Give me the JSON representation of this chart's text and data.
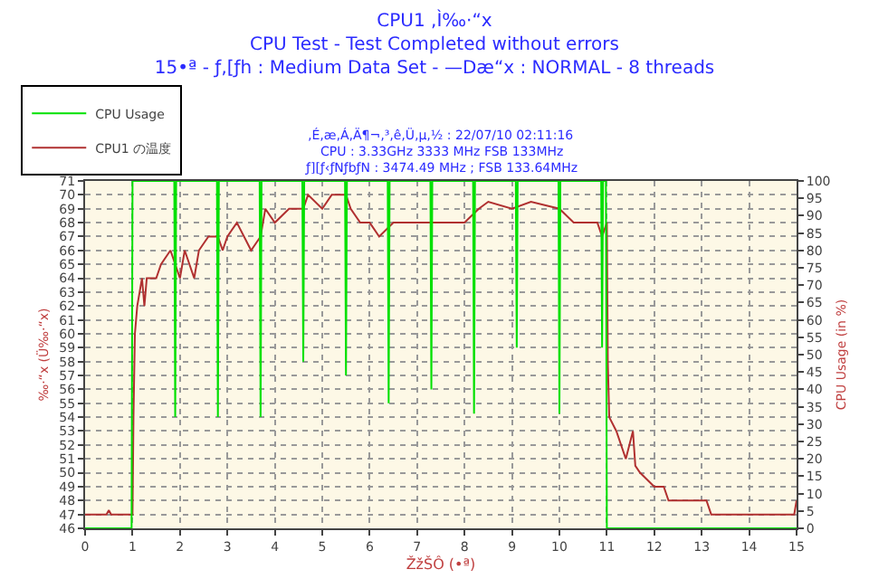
{
  "chart_data": {
    "type": "line",
    "title": "CPU1 ,Ì‰·“x\nCPU Test - Test Completed without errors\n15•ª - ƒ‚[ƒh : Medium Data Set - —Dæ“x : NORMAL - 8 threads",
    "annotations": [
      "‚É‚æ‚Á‚Ä¶¬‚³‚ê‚Ü‚µ‚½ : 22/07/10 02:11:16",
      "CPU : 3.33GHz 3333 MHz FSB 133MHz",
      "ƒ][ƒ‹ƒNƒbƒN : 3474.49 MHz ; FSB 133.64MHz"
    ],
    "xlabel": "ŽžŠÔ (•ª)",
    "ylabel": "‰·“x (Ü‰·“x)",
    "y2label": "CPU Usage (in %)",
    "xlim": [
      0,
      15
    ],
    "xticks": [
      0,
      1,
      2,
      3,
      4,
      5,
      6,
      7,
      8,
      9,
      10,
      11,
      12,
      13,
      14,
      15
    ],
    "ylim": [
      46,
      71
    ],
    "yticks": [
      46,
      47,
      48,
      49,
      50,
      51,
      52,
      53,
      54,
      55,
      56,
      57,
      58,
      59,
      60,
      61,
      62,
      63,
      64,
      65,
      66,
      67,
      68,
      69,
      70,
      71
    ],
    "y2lim": [
      0,
      100
    ],
    "y2ticks": [
      0,
      5,
      10,
      15,
      20,
      25,
      30,
      35,
      40,
      45,
      50,
      55,
      60,
      65,
      70,
      75,
      80,
      85,
      90,
      95,
      100
    ],
    "grid": true,
    "legend": "top left",
    "marker": "none",
    "line_style": "solid",
    "series": [
      {
        "name": "CPU Usage",
        "color": "#00e000",
        "axis": "y2",
        "x": [
          0,
          0.98,
          1.0,
          1.88,
          1.9,
          1.92,
          2.78,
          2.8,
          2.82,
          3.68,
          3.7,
          3.72,
          4.58,
          4.6,
          4.62,
          5.48,
          5.5,
          5.52,
          6.38,
          6.4,
          6.42,
          7.28,
          7.3,
          7.32,
          8.18,
          8.2,
          8.22,
          9.08,
          9.1,
          9.12,
          9.98,
          10.0,
          10.02,
          10.88,
          10.9,
          10.92,
          10.98,
          11.0,
          15
        ],
        "values": [
          0,
          0,
          100,
          100,
          32,
          100,
          100,
          32,
          100,
          100,
          32,
          100,
          100,
          48,
          100,
          100,
          44,
          100,
          100,
          36,
          100,
          100,
          40,
          100,
          100,
          33,
          100,
          100,
          52,
          100,
          100,
          33,
          100,
          100,
          52,
          100,
          100,
          0,
          0
        ]
      },
      {
        "name": "CPU1 の温度",
        "color": "#b03030",
        "x": [
          0,
          0.45,
          0.5,
          0.55,
          1.0,
          1.02,
          1.05,
          1.1,
          1.2,
          1.25,
          1.3,
          1.5,
          1.6,
          1.8,
          2.0,
          2.1,
          2.3,
          2.4,
          2.6,
          2.8,
          2.9,
          3.0,
          3.2,
          3.5,
          3.7,
          3.8,
          4.0,
          4.3,
          4.6,
          4.7,
          5.0,
          5.2,
          5.5,
          5.6,
          5.8,
          6.0,
          6.2,
          6.5,
          7.0,
          7.5,
          8.0,
          8.3,
          8.5,
          9.0,
          9.4,
          10.0,
          10.3,
          10.8,
          10.9,
          11.0,
          11.02,
          11.05,
          11.2,
          11.4,
          11.55,
          11.6,
          11.7,
          12.0,
          12.2,
          12.3,
          13.1,
          13.2,
          14.95,
          15.0
        ],
        "values": [
          47,
          47,
          47.3,
          47,
          47,
          54,
          60,
          62,
          64,
          62,
          64,
          64,
          65,
          66,
          64,
          66,
          64,
          66,
          67,
          67,
          66,
          67,
          68,
          66,
          67,
          69,
          68,
          69,
          69,
          70,
          69,
          70,
          70,
          69,
          68,
          68,
          67,
          68,
          68,
          68,
          68,
          69,
          69.5,
          69,
          69.5,
          69,
          68,
          68,
          67,
          68,
          58,
          54,
          53,
          51,
          53,
          50.5,
          50,
          49,
          49,
          48,
          48,
          47,
          47,
          48
        ]
      }
    ]
  }
}
